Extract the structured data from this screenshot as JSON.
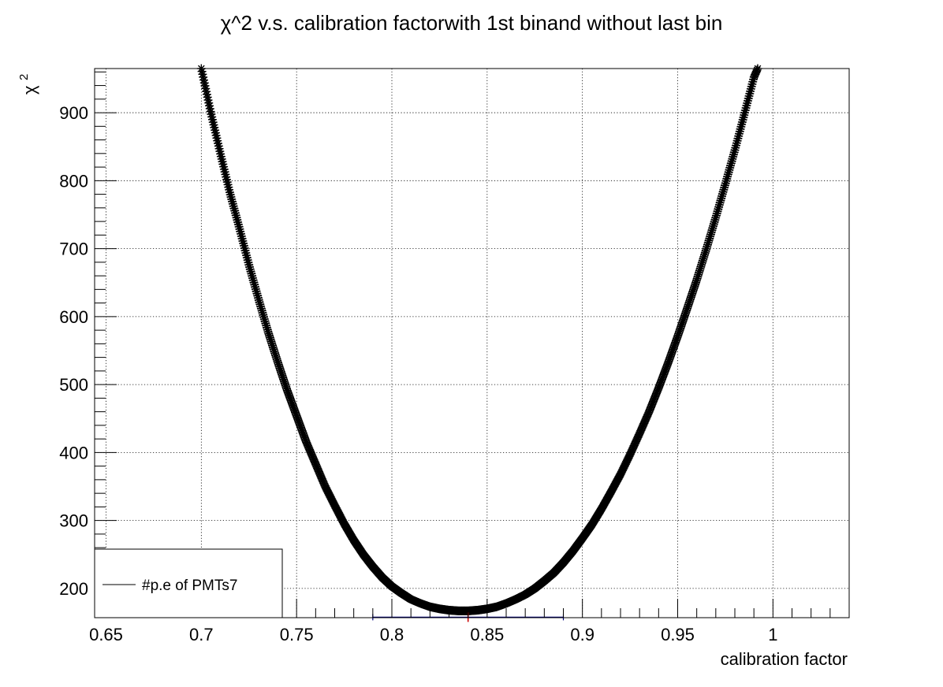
{
  "chart_data": {
    "type": "scatter",
    "title": "χ^2 v.s. calibration factorwith 1st binand without last bin",
    "xlabel": "calibration factor",
    "ylabel": "χ",
    "ylabel_superscript": "2",
    "xlim": [
      0.644,
      1.04
    ],
    "ylim": [
      157,
      965
    ],
    "x_ticks": [
      "0.65",
      "0.7",
      "0.75",
      "0.8",
      "0.85",
      "0.9",
      "0.95",
      "1"
    ],
    "x_tick_values": [
      0.65,
      0.7,
      0.75,
      0.8,
      0.85,
      0.9,
      0.95,
      1.0
    ],
    "y_ticks": [
      "200",
      "300",
      "400",
      "500",
      "600",
      "700",
      "800",
      "900"
    ],
    "y_tick_values": [
      200,
      300,
      400,
      500,
      600,
      700,
      800,
      900
    ],
    "grid": true,
    "marker": "star",
    "series": [
      {
        "name": "#p.e of PMTs7",
        "color": "#000000",
        "points": [
          [
            0.7,
            965
          ],
          [
            0.705,
            900
          ],
          [
            0.71,
            840
          ],
          [
            0.715,
            782
          ],
          [
            0.72,
            730
          ],
          [
            0.725,
            676
          ],
          [
            0.73,
            626
          ],
          [
            0.735,
            578
          ],
          [
            0.74,
            534
          ],
          [
            0.745,
            492
          ],
          [
            0.75,
            454
          ],
          [
            0.755,
            416
          ],
          [
            0.76,
            383
          ],
          [
            0.765,
            350
          ],
          [
            0.77,
            322
          ],
          [
            0.775,
            295
          ],
          [
            0.78,
            271
          ],
          [
            0.785,
            250
          ],
          [
            0.79,
            232
          ],
          [
            0.795,
            216
          ],
          [
            0.8,
            203
          ],
          [
            0.805,
            193
          ],
          [
            0.81,
            184
          ],
          [
            0.815,
            178
          ],
          [
            0.82,
            173
          ],
          [
            0.825,
            170
          ],
          [
            0.83,
            168
          ],
          [
            0.835,
            167
          ],
          [
            0.84,
            167
          ],
          [
            0.845,
            168
          ],
          [
            0.85,
            170
          ],
          [
            0.855,
            173
          ],
          [
            0.86,
            178
          ],
          [
            0.865,
            184
          ],
          [
            0.87,
            191
          ],
          [
            0.875,
            200
          ],
          [
            0.88,
            211
          ],
          [
            0.885,
            223
          ],
          [
            0.89,
            238
          ],
          [
            0.895,
            255
          ],
          [
            0.9,
            274
          ],
          [
            0.905,
            294
          ],
          [
            0.91,
            317
          ],
          [
            0.915,
            342
          ],
          [
            0.92,
            368
          ],
          [
            0.925,
            397
          ],
          [
            0.93,
            428
          ],
          [
            0.935,
            460
          ],
          [
            0.94,
            495
          ],
          [
            0.945,
            532
          ],
          [
            0.95,
            571
          ],
          [
            0.955,
            612
          ],
          [
            0.96,
            654
          ],
          [
            0.965,
            699
          ],
          [
            0.97,
            746
          ],
          [
            0.975,
            795
          ],
          [
            0.98,
            845
          ],
          [
            0.985,
            898
          ],
          [
            0.99,
            952
          ],
          [
            0.992,
            965
          ]
        ]
      }
    ],
    "minimum_marker": {
      "x": 0.84,
      "y": 167,
      "x_error": [
        0.79,
        0.89
      ],
      "color": "#cc0000",
      "error_color": "#000080"
    },
    "legend": {
      "placement": "bottom-left",
      "label": "#p.e of PMTs7"
    }
  }
}
